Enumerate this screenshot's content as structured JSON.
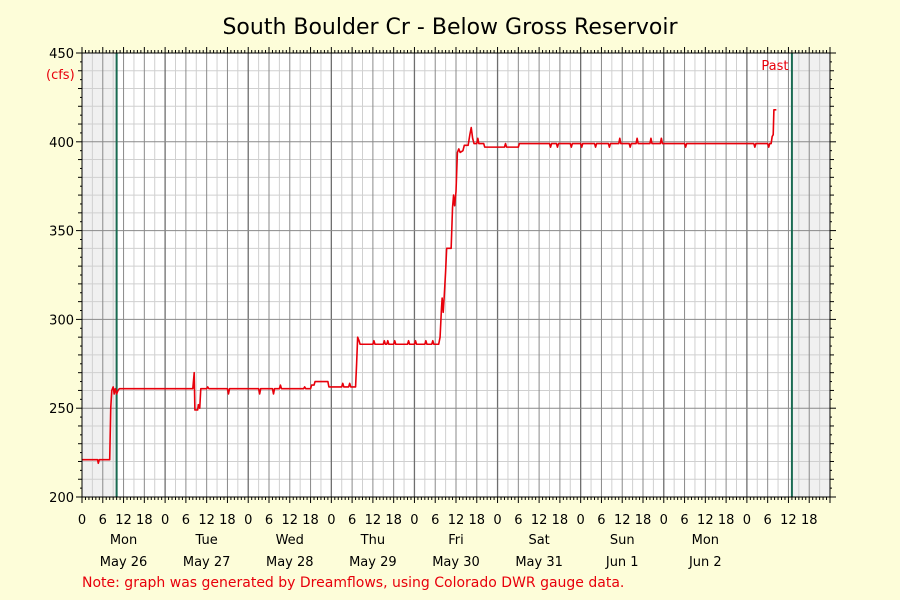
{
  "chart_data": {
    "type": "line",
    "title": "South Boulder Cr - Below Gross Reservoir",
    "ylabel": "",
    "y_unit": "(cfs)",
    "ylim": [
      200,
      450
    ],
    "y_ticks": [
      200,
      250,
      300,
      350,
      400,
      450
    ],
    "xlim_hours": [
      0,
      216
    ],
    "hour_tick_labels": [
      "0",
      "6",
      "12",
      "18",
      "0",
      "6",
      "12",
      "18",
      "0",
      "6",
      "12",
      "18",
      "0",
      "6",
      "12",
      "18",
      "0",
      "6",
      "12",
      "18",
      "0",
      "6",
      "12",
      "18",
      "0",
      "6",
      "12",
      "18",
      "0",
      "6",
      "12",
      "18",
      "0",
      "6",
      "12",
      "18"
    ],
    "day_names": [
      "Mon",
      "Tue",
      "Wed",
      "Thu",
      "Fri",
      "Sat",
      "Sun",
      "Mon"
    ],
    "day_dates": [
      "May 26",
      "May 27",
      "May 28",
      "May 29",
      "May 30",
      "May 31",
      "Jun 1",
      "Jun 2"
    ],
    "window_hours": [
      10,
      205
    ],
    "window_label": "Past",
    "grid": true,
    "colors": {
      "line": "#e8000b",
      "window_line": "#1a6b52",
      "shaded": "#f0f0f0",
      "plot_bg": "#ffffff",
      "grid_major": "#8a8a8a",
      "grid_minor": "#d0d0d0",
      "page_bg": "#fdfdd9"
    },
    "series": [
      {
        "points": [
          [
            0,
            221
          ],
          [
            4.5,
            221
          ],
          [
            4.7,
            219
          ],
          [
            5,
            221
          ],
          [
            8,
            221
          ],
          [
            8.3,
            250
          ],
          [
            8.6,
            260
          ],
          [
            9,
            262
          ],
          [
            9.3,
            258
          ],
          [
            9.6,
            261
          ],
          [
            10,
            258
          ],
          [
            10.4,
            260
          ],
          [
            10.8,
            261
          ],
          [
            32,
            261
          ],
          [
            32.4,
            270
          ],
          [
            32.6,
            249
          ],
          [
            33.4,
            249
          ],
          [
            33.6,
            252
          ],
          [
            34,
            250
          ],
          [
            34.3,
            261
          ],
          [
            36,
            261
          ],
          [
            36.3,
            262
          ],
          [
            36.6,
            261
          ],
          [
            42,
            261
          ],
          [
            42.3,
            258
          ],
          [
            42.6,
            261
          ],
          [
            51,
            261
          ],
          [
            51.3,
            258
          ],
          [
            51.6,
            261
          ],
          [
            55,
            261
          ],
          [
            55.3,
            258
          ],
          [
            55.6,
            261
          ],
          [
            57,
            261
          ],
          [
            57.3,
            263
          ],
          [
            57.6,
            261
          ],
          [
            64,
            261
          ],
          [
            64.3,
            262
          ],
          [
            64.6,
            261
          ],
          [
            66,
            261
          ],
          [
            66.3,
            263
          ],
          [
            67,
            263
          ],
          [
            67.3,
            265
          ],
          [
            71,
            265
          ],
          [
            71.3,
            262
          ],
          [
            75,
            262
          ],
          [
            75.3,
            264
          ],
          [
            75.6,
            262
          ],
          [
            77,
            262
          ],
          [
            77.3,
            264
          ],
          [
            77.6,
            262
          ],
          [
            79,
            262
          ],
          [
            79.3,
            275
          ],
          [
            79.6,
            290
          ],
          [
            80,
            288
          ],
          [
            80.3,
            286
          ],
          [
            84,
            286
          ],
          [
            84.3,
            288
          ],
          [
            84.6,
            286
          ],
          [
            87,
            286
          ],
          [
            87.3,
            288
          ],
          [
            87.6,
            286
          ],
          [
            88,
            286
          ],
          [
            88.3,
            288
          ],
          [
            88.6,
            286
          ],
          [
            90,
            286
          ],
          [
            90.3,
            288
          ],
          [
            90.6,
            286
          ],
          [
            94,
            286
          ],
          [
            94.3,
            288
          ],
          [
            94.6,
            286
          ],
          [
            96,
            286
          ],
          [
            96.3,
            288
          ],
          [
            96.6,
            286
          ],
          [
            99,
            286
          ],
          [
            99.3,
            288
          ],
          [
            99.6,
            286
          ],
          [
            101,
            286
          ],
          [
            101.3,
            288
          ],
          [
            101.6,
            286
          ],
          [
            103,
            286
          ],
          [
            103.4,
            290
          ],
          [
            103.8,
            306
          ],
          [
            104,
            312
          ],
          [
            104.3,
            304
          ],
          [
            104.6,
            313
          ],
          [
            105,
            327
          ],
          [
            105.3,
            340
          ],
          [
            106.6,
            340
          ],
          [
            107,
            363
          ],
          [
            107.3,
            370
          ],
          [
            107.6,
            364
          ],
          [
            108,
            372
          ],
          [
            108.4,
            394
          ],
          [
            108.8,
            396
          ],
          [
            109.2,
            394
          ],
          [
            110,
            395
          ],
          [
            110.4,
            398
          ],
          [
            111.5,
            398
          ],
          [
            112,
            404
          ],
          [
            112.4,
            408
          ],
          [
            112.8,
            402
          ],
          [
            113.2,
            399
          ],
          [
            114,
            399
          ],
          [
            114.3,
            402
          ],
          [
            114.6,
            399
          ],
          [
            116,
            399
          ],
          [
            116.3,
            397
          ],
          [
            122,
            397
          ],
          [
            122.3,
            399
          ],
          [
            122.6,
            397
          ],
          [
            126,
            397
          ],
          [
            126.3,
            399
          ],
          [
            135,
            399
          ],
          [
            135.3,
            397
          ],
          [
            135.6,
            399
          ],
          [
            137,
            399
          ],
          [
            137.3,
            397
          ],
          [
            137.6,
            399
          ],
          [
            141,
            399
          ],
          [
            141.3,
            397
          ],
          [
            141.6,
            399
          ],
          [
            144,
            399
          ],
          [
            144.3,
            397
          ],
          [
            144.6,
            399
          ],
          [
            148,
            399
          ],
          [
            148.3,
            397
          ],
          [
            148.6,
            399
          ],
          [
            152,
            399
          ],
          [
            152.3,
            397
          ],
          [
            152.6,
            399
          ],
          [
            155,
            399
          ],
          [
            155.3,
            402
          ],
          [
            155.6,
            399
          ],
          [
            158,
            399
          ],
          [
            158.3,
            397
          ],
          [
            158.6,
            399
          ],
          [
            160,
            399
          ],
          [
            160.3,
            402
          ],
          [
            160.6,
            399
          ],
          [
            164,
            399
          ],
          [
            164.3,
            402
          ],
          [
            164.6,
            399
          ],
          [
            167,
            399
          ],
          [
            167.3,
            402
          ],
          [
            167.6,
            399
          ],
          [
            174,
            399
          ],
          [
            174.3,
            397
          ],
          [
            174.6,
            399
          ],
          [
            194,
            399
          ],
          [
            194.3,
            397
          ],
          [
            194.6,
            399
          ],
          [
            198,
            399
          ],
          [
            198.3,
            397
          ],
          [
            198.6,
            399
          ],
          [
            199,
            399
          ],
          [
            199.3,
            403
          ],
          [
            199.6,
            404
          ],
          [
            199.8,
            418
          ],
          [
            200.5,
            418
          ]
        ]
      }
    ]
  },
  "note": "Note: graph was generated by Dreamflows, using Colorado DWR gauge data."
}
